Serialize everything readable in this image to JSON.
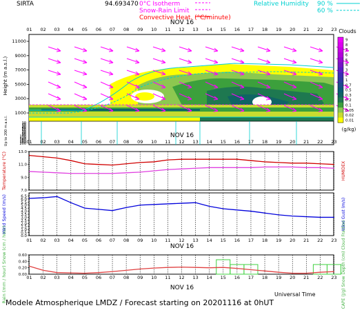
{
  "header": {
    "station": "SIRTA",
    "station_alt": "94.693470",
    "legend_left": [
      {
        "text": "0°C Isotherm",
        "color": "#ff00ff",
        "style": "dashed"
      },
      {
        "text": "Snow-Rain Limit",
        "color": "#ff00ff",
        "style": "dashed"
      },
      {
        "text": "Convective Heat. (°C/minute)",
        "color": "#ff0000",
        "style": "solid"
      }
    ],
    "legend_right": [
      {
        "text": "Relative Humidity",
        "value": "90 %",
        "color": "#00d0d0",
        "style": "solid"
      },
      {
        "text": "",
        "value": "60 %",
        "color": "#00d0d0",
        "style": "dashed"
      }
    ]
  },
  "time_axis": {
    "hours": [
      "01",
      "02",
      "03",
      "04",
      "05",
      "06",
      "07",
      "08",
      "09",
      "10",
      "11",
      "12",
      "13",
      "14",
      "15",
      "16",
      "17",
      "18",
      "19",
      "20",
      "21",
      "22",
      "23"
    ],
    "date_label": "NOV 16",
    "bottom_label": "Universal Time"
  },
  "footer": {
    "text": "Modele Atmospherique LMDZ / Forecast starting on 20201116 at 0hUT"
  },
  "chart_data": [
    {
      "type": "heatmap",
      "panel": "clouds",
      "ylabel": "Height (m a.s.l.)",
      "ylabel_lower": "Up to 200 m a.s.l.",
      "yticks_upper": [
        1000,
        3000,
        5000,
        7000,
        9000,
        11000
      ],
      "yticks_lower": [
        10,
        20,
        30,
        40,
        50,
        60,
        70,
        80,
        90,
        100,
        120,
        140,
        160,
        180,
        200
      ],
      "colorbar": {
        "title": "Clouds",
        "unit": "(g/kg)",
        "levels": [
          "0.01",
          "0.02",
          "0.05",
          "0.1",
          "0.2",
          "0.3",
          "0.5",
          "0.7",
          "1",
          "2",
          "3",
          "4",
          "5",
          "6",
          "7",
          "8",
          "9"
        ],
        "colors": [
          "#ffff00",
          "#c8dc30",
          "#8cc850",
          "#3ca03c",
          "#1e7850",
          "#0f6464",
          "#0a5a78",
          "#1e4b8c",
          "#2d3ca0",
          "#3c2db4",
          "#5a1ec8",
          "#7814c8",
          "#960ad2",
          "#b400dc",
          "#c800e6",
          "#dc00f0",
          "#f000ff"
        ]
      },
      "wind_arrows": {
        "color": "#ff00ff",
        "direction": "from west-southwest"
      }
    },
    {
      "type": "line",
      "panel": "temperature",
      "ylabel": "Temperature (°C)",
      "ylabel_right": "HUMIDEX",
      "ylim": [
        7.0,
        13.0
      ],
      "yticks": [
        7.0,
        9.0,
        11.0,
        13.0
      ],
      "x": [
        1,
        2,
        3,
        4,
        5,
        6,
        7,
        8,
        9,
        10,
        11,
        12,
        13,
        14,
        15,
        16,
        17,
        18,
        19,
        20,
        21,
        22,
        23
      ],
      "series": [
        {
          "name": "Temperature",
          "color": "#d00000",
          "values": [
            12.4,
            12.2,
            12.0,
            11.6,
            11.1,
            11.0,
            10.9,
            11.1,
            11.3,
            11.4,
            11.7,
            11.8,
            11.8,
            11.8,
            11.8,
            11.8,
            11.6,
            11.4,
            11.3,
            11.2,
            11.2,
            11.1,
            11.0
          ]
        },
        {
          "name": "Humidex",
          "color": "#e040e0",
          "values": [
            9.9,
            9.8,
            9.7,
            9.6,
            9.6,
            9.6,
            9.6,
            9.7,
            9.8,
            10.0,
            10.2,
            10.3,
            10.4,
            10.5,
            10.5,
            10.5,
            10.5,
            10.6,
            10.6,
            10.6,
            10.5,
            10.5,
            10.4
          ]
        }
      ]
    },
    {
      "type": "line",
      "panel": "wind",
      "ylabel": "Wind Speed (m/s)",
      "ylabel_right": "Wind Gust (m/s)",
      "ylim": [
        0.0,
        7.0
      ],
      "yticks": [
        0.0,
        0.5,
        1.0,
        1.5,
        2.0,
        2.5,
        3.0,
        3.5,
        4.0,
        4.5,
        5.0,
        5.5,
        6.0,
        6.5
      ],
      "x": [
        1,
        2,
        3,
        4,
        5,
        6,
        7,
        8,
        9,
        10,
        11,
        12,
        13,
        14,
        15,
        16,
        17,
        18,
        19,
        20,
        21,
        22,
        23
      ],
      "series": [
        {
          "name": "Wind Speed",
          "color": "#0000dc",
          "values": [
            6.1,
            6.2,
            6.4,
            5.4,
            4.5,
            4.3,
            4.1,
            4.6,
            5.0,
            5.1,
            5.2,
            5.3,
            5.4,
            4.8,
            4.4,
            4.2,
            4.0,
            3.7,
            3.4,
            3.2,
            3.1,
            3.0,
            3.0
          ]
        }
      ]
    },
    {
      "type": "bar",
      "panel": "rain",
      "ylabel": "Rain (mm / hour) Snow (cm / hour)",
      "ylabel_right": "CAPE (J/g) Snow Depth (cm) Cloud Fraction",
      "ylim": [
        0.0,
        0.6
      ],
      "yticks": [
        "0.00",
        "0.20",
        "0.40",
        "0.60"
      ],
      "x": [
        1,
        2,
        3,
        4,
        5,
        6,
        7,
        8,
        9,
        10,
        11,
        12,
        13,
        14,
        15,
        16,
        17,
        18,
        19,
        20,
        21,
        22,
        23
      ],
      "series": [
        {
          "name": "Rain",
          "color": "#40d040",
          "values": [
            0,
            0,
            0,
            0,
            0,
            0,
            0,
            0,
            0,
            0,
            0,
            0,
            0,
            0,
            0.45,
            0.3,
            0.3,
            0,
            0,
            0,
            0,
            0.3,
            0.3
          ]
        },
        {
          "name": "CAPE",
          "color": "#e04040",
          "values": [
            0.25,
            0.12,
            0.05,
            0.04,
            0.03,
            0.05,
            0.08,
            0.12,
            0.16,
            0.19,
            0.21,
            0.22,
            0.21,
            0.2,
            0.21,
            0.18,
            0.14,
            0.1,
            0.06,
            0.03,
            0.03,
            0.06,
            0.08
          ]
        }
      ]
    }
  ]
}
